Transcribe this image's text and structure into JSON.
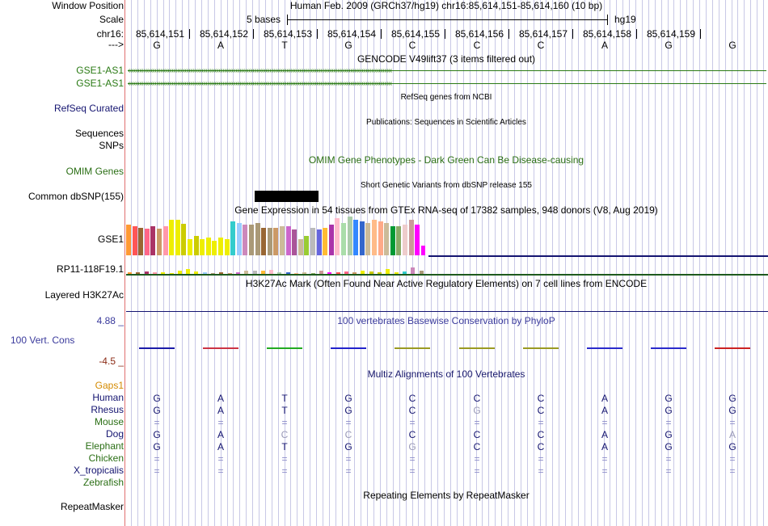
{
  "position": {
    "label": "Window Position",
    "value": "Human Feb. 2009 (GRCh37/hg19)   chr16:85,614,151-85,614,160 (10 bp)"
  },
  "scale": {
    "label": "Scale",
    "bar_text": "5 bases",
    "assembly": "hg19"
  },
  "chrom": {
    "label": "chr16:",
    "ticks": [
      "85,614,151",
      "85,614,152",
      "85,614,153",
      "85,614,154",
      "85,614,155",
      "85,614,156",
      "85,614,157",
      "85,614,158",
      "85,614,159"
    ]
  },
  "sequence": {
    "label": "--->",
    "bases": [
      "G",
      "A",
      "T",
      "G",
      "C",
      "C",
      "C",
      "A",
      "G",
      "G"
    ]
  },
  "tracks": {
    "gencode_title": "GENCODE V49lift37 (3 items filtered out)",
    "gse1_as1_a": "GSE1-AS1",
    "gse1_as1_b": "GSE1-AS1",
    "refseq_title": "RefSeq genes from NCBI",
    "refseq_label": "RefSeq Curated",
    "pubs_title": "Publications: Sequences in Scientific Articles",
    "sequences_label": "Sequences",
    "snps_label": "SNPs",
    "omim_title": "OMIM Gene Phenotypes - Dark Green Can Be Disease-causing",
    "omim_label": "OMIM Genes",
    "dbsnp_title": "Short Genetic Variants from dbSNP release 155",
    "dbsnp_label": "Common dbSNP(155)",
    "gtex_title": "Gene Expression in 54 tissues from GTEx RNA-seq of 17382 samples, 948 donors (V8, Aug 2019)",
    "gtex_gse1_label": "GSE1",
    "gtex_rp11_label": "RP11-118F19.1",
    "h3k27_title": "H3K27Ac Mark (Often Found Near Active Regulatory Elements) on 7 cell lines from ENCODE",
    "h3k27_label": "Layered H3K27Ac",
    "phylop_title": "100 vertebrates Basewise Conservation by PhyloP",
    "phylop_max": "4.88 _",
    "phylop_label": "100 Vert. Cons",
    "phylop_min": "-4.5 _",
    "multiz_title": "Multiz Alignments of 100 Vertebrates",
    "gaps_label": "Gaps1",
    "rmsk_title": "Repeating Elements by RepeatMasker",
    "rmsk_label": "RepeatMasker"
  },
  "gtex_values": {
    "gse1": [
      38,
      36,
      34,
      33,
      36,
      33,
      36,
      44,
      44,
      39,
      20,
      24,
      20,
      22,
      18,
      22,
      20,
      42,
      40,
      38,
      38,
      40,
      34,
      34,
      34,
      36,
      36,
      32,
      20,
      24,
      34,
      32,
      34,
      38,
      46,
      40,
      48,
      44,
      42,
      40,
      44,
      42,
      40,
      36,
      36,
      38,
      44,
      38,
      12
    ],
    "rp11": [
      2,
      2,
      3,
      2,
      2,
      1,
      4,
      6,
      3,
      2,
      1,
      2,
      1,
      2,
      4,
      4,
      4,
      5,
      2,
      2,
      1,
      2,
      1,
      4,
      2,
      2,
      3,
      2,
      4,
      3,
      2,
      6,
      2,
      3,
      8,
      4
    ]
  },
  "colors": {
    "gtex": [
      "#ff9933",
      "#ff5555",
      "#996633",
      "#ff6688",
      "#aa3366",
      "#cc9966",
      "#ff99aa",
      "#eeee00",
      "#eeee00",
      "#cccc00",
      "#eeee00",
      "#cccc00",
      "#eeee00",
      "#eeee00",
      "#eeee00",
      "#eeee00",
      "#eeee00",
      "#33cccc",
      "#99ccff",
      "#cc88bb",
      "#aa9977",
      "#aa9977",
      "#996633",
      "#aa9977",
      "#cc9966",
      "#ccbb99",
      "#cc66cc",
      "#aa5599",
      "#ccbb99",
      "#99cc33",
      "#bbbbbb",
      "#6666dd",
      "#ffbb33",
      "#aa33aa",
      "#ffbbcc",
      "#aaddaa",
      "#aaccaa",
      "#3388ff",
      "#3366cc",
      "#ccbb99",
      "#ffbb88",
      "#ffaa88",
      "#ccbb99",
      "#009933",
      "#88aa66",
      "#eecccc",
      "#cc9999",
      "#ff00ff",
      "#ff00ff"
    ],
    "conservation": "#1a1aa8",
    "nav_blue": "#141470",
    "gene_green": "#2a7a14",
    "phylop_title": "#3a3a9c",
    "phylop_min": "#8b2a14",
    "multiz_title": "#18186c",
    "gaps": "#d48a00",
    "omim": "#2a6e14"
  },
  "multiz": {
    "species": [
      "Human",
      "Rhesus",
      "Mouse",
      "Dog",
      "Elephant",
      "Chicken",
      "X_tropicalis",
      "Zebrafish"
    ],
    "rows": [
      [
        "G",
        "A",
        "T",
        "G",
        "C",
        "C",
        "C",
        "A",
        "G",
        "G"
      ],
      [
        "G",
        "A",
        "T",
        "G",
        "C",
        "G",
        "C",
        "A",
        "G",
        "G"
      ],
      [
        "=",
        "=",
        "=",
        "=",
        "=",
        "=",
        "=",
        "=",
        "=",
        "="
      ],
      [
        "G",
        "A",
        "C",
        "C",
        "C",
        "C",
        "C",
        "A",
        "G",
        "A"
      ],
      [
        "G",
        "A",
        "T",
        "G",
        "G",
        "C",
        "C",
        "A",
        "G",
        "G"
      ],
      [
        "=",
        "=",
        "=",
        "=",
        "=",
        "=",
        "=",
        "=",
        "=",
        "="
      ],
      [
        "=",
        "=",
        "=",
        "=",
        "=",
        "=",
        "=",
        "=",
        "=",
        "="
      ],
      [
        "",
        "",
        "",
        "",
        "",
        "",
        "",
        "",
        "",
        ""
      ]
    ]
  }
}
